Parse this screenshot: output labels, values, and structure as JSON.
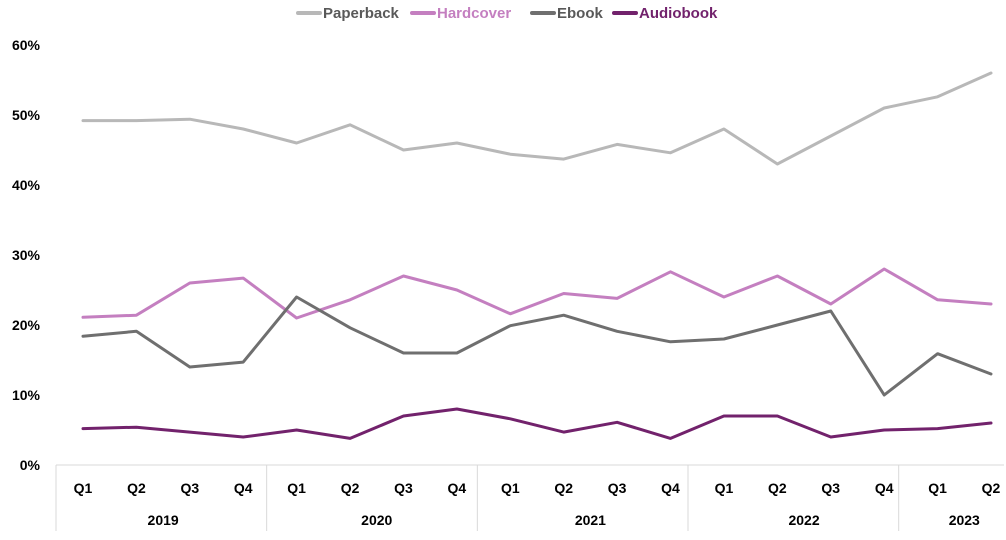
{
  "chart_data": {
    "type": "line",
    "title": "",
    "xlabel": "",
    "ylabel": "",
    "ylim": [
      0,
      60
    ],
    "y_ticks": [
      "0%",
      "10%",
      "20%",
      "30%",
      "40%",
      "50%",
      "60%"
    ],
    "y_tick_values": [
      0,
      10,
      20,
      30,
      40,
      50,
      60
    ],
    "y_unit": "%",
    "grid": false,
    "legend_position": "top-center",
    "categories": [
      "Q1",
      "Q2",
      "Q3",
      "Q4",
      "Q1",
      "Q2",
      "Q3",
      "Q4",
      "Q1",
      "Q2",
      "Q3",
      "Q4",
      "Q1",
      "Q2",
      "Q3",
      "Q4",
      "Q1",
      "Q2"
    ],
    "groups": [
      {
        "label": "2019",
        "count": 4
      },
      {
        "label": "2020",
        "count": 4
      },
      {
        "label": "2021",
        "count": 4
      },
      {
        "label": "2022",
        "count": 4
      },
      {
        "label": "2023",
        "count": 2
      }
    ],
    "series": [
      {
        "name": "Paperback",
        "color": "#b8b8b8",
        "values": [
          49.2,
          49.2,
          49.4,
          48.0,
          46.0,
          48.6,
          45.0,
          46.0,
          44.4,
          43.7,
          45.8,
          44.6,
          48.0,
          43.0,
          47.0,
          51.0,
          52.6,
          56.0
        ]
      },
      {
        "name": "Hardcover",
        "color": "#c47fc0",
        "values": [
          21.1,
          21.4,
          26.0,
          26.7,
          21.0,
          23.6,
          27.0,
          25.0,
          21.6,
          24.5,
          23.8,
          27.6,
          24.0,
          27.0,
          23.0,
          28.0,
          23.6,
          23.0
        ]
      },
      {
        "name": "Ebook",
        "color": "#6f6f6f",
        "values": [
          18.4,
          19.1,
          14.0,
          14.7,
          24.0,
          19.6,
          16.0,
          16.0,
          19.9,
          21.4,
          19.1,
          17.6,
          18.0,
          20.0,
          22.0,
          10.0,
          15.9,
          13.0
        ]
      },
      {
        "name": "Audiobook",
        "color": "#72226c",
        "values": [
          5.2,
          5.4,
          4.7,
          4.0,
          5.0,
          3.8,
          7.0,
          8.0,
          6.6,
          4.7,
          6.1,
          3.8,
          7.0,
          7.0,
          4.0,
          5.0,
          5.2,
          6.0
        ]
      }
    ]
  }
}
